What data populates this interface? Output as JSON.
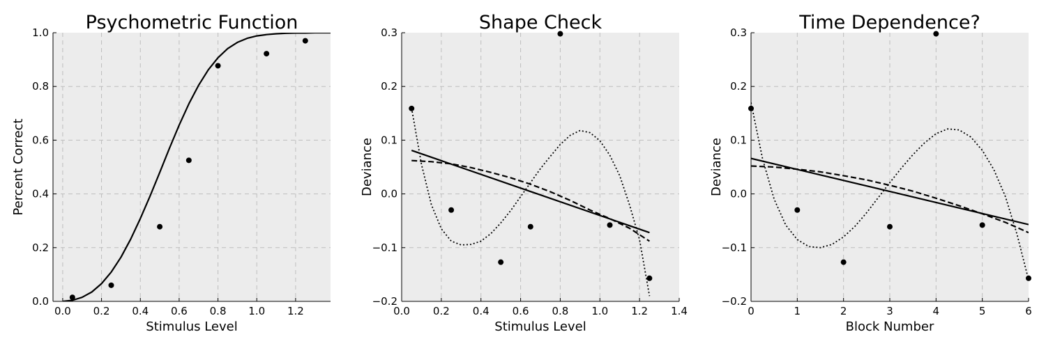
{
  "chart_data": [
    {
      "type": "scatter",
      "title": "Psychometric Function",
      "xlabel": "Stimulus Level",
      "ylabel": "Percent Correct",
      "xlim": [
        -0.05,
        1.38
      ],
      "ylim": [
        0,
        1
      ],
      "xticks": [
        0,
        0.2,
        0.4,
        0.6,
        0.8,
        1.0,
        1.2
      ],
      "xtick_labels": [
        "0.0",
        "0.2",
        "0.4",
        "0.6",
        "0.8",
        "1.0",
        "1.2"
      ],
      "yticks": [
        0,
        0.2,
        0.4,
        0.6,
        0.8,
        1.0
      ],
      "ytick_labels": [
        "0.0",
        "0.2",
        "0.4",
        "0.6",
        "0.8",
        "1.0"
      ],
      "grid": true,
      "background": "#ececec",
      "points": {
        "x": [
          0.05,
          0.25,
          0.5,
          0.65,
          0.8,
          1.05,
          1.25
        ],
        "y": [
          0.015,
          0.06,
          0.278,
          0.525,
          0.877,
          0.922,
          0.97
        ]
      },
      "curves": [
        {
          "style": "solid",
          "x": [
            0,
            0.05,
            0.1,
            0.15,
            0.2,
            0.25,
            0.3,
            0.35,
            0.4,
            0.45,
            0.5,
            0.55,
            0.6,
            0.65,
            0.7,
            0.75,
            0.8,
            0.85,
            0.9,
            0.95,
            1.0,
            1.05,
            1.1,
            1.15,
            1.2,
            1.25,
            1.3,
            1.35,
            1.38
          ],
          "y": [
            0.0,
            0.004,
            0.015,
            0.035,
            0.066,
            0.109,
            0.164,
            0.231,
            0.308,
            0.392,
            0.48,
            0.57,
            0.656,
            0.735,
            0.804,
            0.862,
            0.907,
            0.941,
            0.964,
            0.979,
            0.988,
            0.993,
            0.996,
            0.998,
            0.999,
            0.999,
            1.0,
            1.0,
            1.0
          ]
        }
      ]
    },
    {
      "type": "scatter",
      "title": "Shape Check",
      "xlabel": "Stimulus Level",
      "ylabel": "Deviance",
      "xlim": [
        0,
        1.4
      ],
      "ylim": [
        -0.2,
        0.3
      ],
      "xticks": [
        0,
        0.2,
        0.4,
        0.6,
        0.8,
        1.0,
        1.2,
        1.4
      ],
      "xtick_labels": [
        "0.0",
        "0.2",
        "0.4",
        "0.6",
        "0.8",
        "1.0",
        "1.2",
        "1.4"
      ],
      "yticks": [
        -0.2,
        -0.1,
        0,
        0.1,
        0.2,
        0.3
      ],
      "ytick_labels": [
        "−0.2",
        "−0.1",
        "0.0",
        "0.1",
        "0.2",
        "0.3"
      ],
      "grid": true,
      "background": "#ececec",
      "points": {
        "x": [
          0.05,
          0.25,
          0.5,
          0.65,
          0.8,
          1.05,
          1.25
        ],
        "y": [
          0.159,
          -0.03,
          -0.127,
          -0.061,
          0.298,
          -0.058,
          -0.157
        ]
      },
      "curves": [
        {
          "style": "solid",
          "x": [
            0.05,
            1.25
          ],
          "y": [
            0.081,
            -0.072
          ]
        },
        {
          "style": "dashed",
          "x": [
            0.05,
            0.15,
            0.25,
            0.35,
            0.45,
            0.55,
            0.65,
            0.75,
            0.85,
            0.95,
            1.05,
            1.15,
            1.25
          ],
          "y": [
            0.062,
            0.06,
            0.056,
            0.049,
            0.04,
            0.03,
            0.018,
            0.004,
            -0.012,
            -0.03,
            -0.046,
            -0.064,
            -0.088
          ]
        },
        {
          "style": "dotted",
          "x": [
            0.05,
            0.1,
            0.15,
            0.2,
            0.25,
            0.3,
            0.35,
            0.4,
            0.45,
            0.5,
            0.55,
            0.6,
            0.65,
            0.7,
            0.75,
            0.8,
            0.85,
            0.9,
            0.95,
            1.0,
            1.05,
            1.1,
            1.15,
            1.2,
            1.25
          ],
          "y": [
            0.16,
            0.055,
            -0.02,
            -0.065,
            -0.088,
            -0.095,
            -0.094,
            -0.088,
            -0.074,
            -0.054,
            -0.031,
            -0.005,
            0.021,
            0.047,
            0.07,
            0.092,
            0.109,
            0.118,
            0.114,
            0.099,
            0.072,
            0.034,
            -0.021,
            -0.085,
            -0.19
          ]
        }
      ]
    },
    {
      "type": "scatter",
      "title": "Time Dependence?",
      "xlabel": "Block Number",
      "ylabel": "Deviance",
      "xlim": [
        0,
        6
      ],
      "ylim": [
        -0.2,
        0.3
      ],
      "xticks": [
        0,
        1,
        2,
        3,
        4,
        5,
        6
      ],
      "xtick_labels": [
        "0",
        "1",
        "2",
        "3",
        "4",
        "5",
        "6"
      ],
      "yticks": [
        -0.2,
        -0.1,
        0,
        0.1,
        0.2,
        0.3
      ],
      "ytick_labels": [
        "−0.2",
        "−0.1",
        "0.0",
        "0.1",
        "0.2",
        "0.3"
      ],
      "grid": true,
      "background": "#ececec",
      "points": {
        "x": [
          0,
          1,
          2,
          3,
          4,
          5,
          6
        ],
        "y": [
          0.159,
          -0.03,
          -0.127,
          -0.061,
          0.298,
          -0.058,
          -0.157
        ]
      },
      "curves": [
        {
          "style": "solid",
          "x": [
            0,
            6
          ],
          "y": [
            0.066,
            -0.057
          ]
        },
        {
          "style": "dashed",
          "x": [
            0,
            0.5,
            1,
            1.5,
            2,
            2.5,
            3,
            3.5,
            4,
            4.5,
            5,
            5.5,
            6
          ],
          "y": [
            0.052,
            0.05,
            0.046,
            0.041,
            0.034,
            0.026,
            0.016,
            0.005,
            -0.008,
            -0.022,
            -0.037,
            -0.053,
            -0.072
          ]
        },
        {
          "style": "dotted",
          "x": [
            0,
            0.25,
            0.5,
            0.75,
            1,
            1.25,
            1.5,
            1.75,
            2,
            2.25,
            2.5,
            2.75,
            3,
            3.25,
            3.5,
            3.75,
            4,
            4.25,
            4.5,
            4.75,
            5,
            5.25,
            5.5,
            5.75,
            6
          ],
          "y": [
            0.17,
            0.065,
            -0.01,
            -0.058,
            -0.085,
            -0.098,
            -0.1,
            -0.094,
            -0.08,
            -0.06,
            -0.035,
            -0.007,
            0.021,
            0.048,
            0.073,
            0.095,
            0.112,
            0.121,
            0.119,
            0.106,
            0.081,
            0.045,
            -0.005,
            -0.075,
            -0.16
          ]
        }
      ]
    }
  ]
}
